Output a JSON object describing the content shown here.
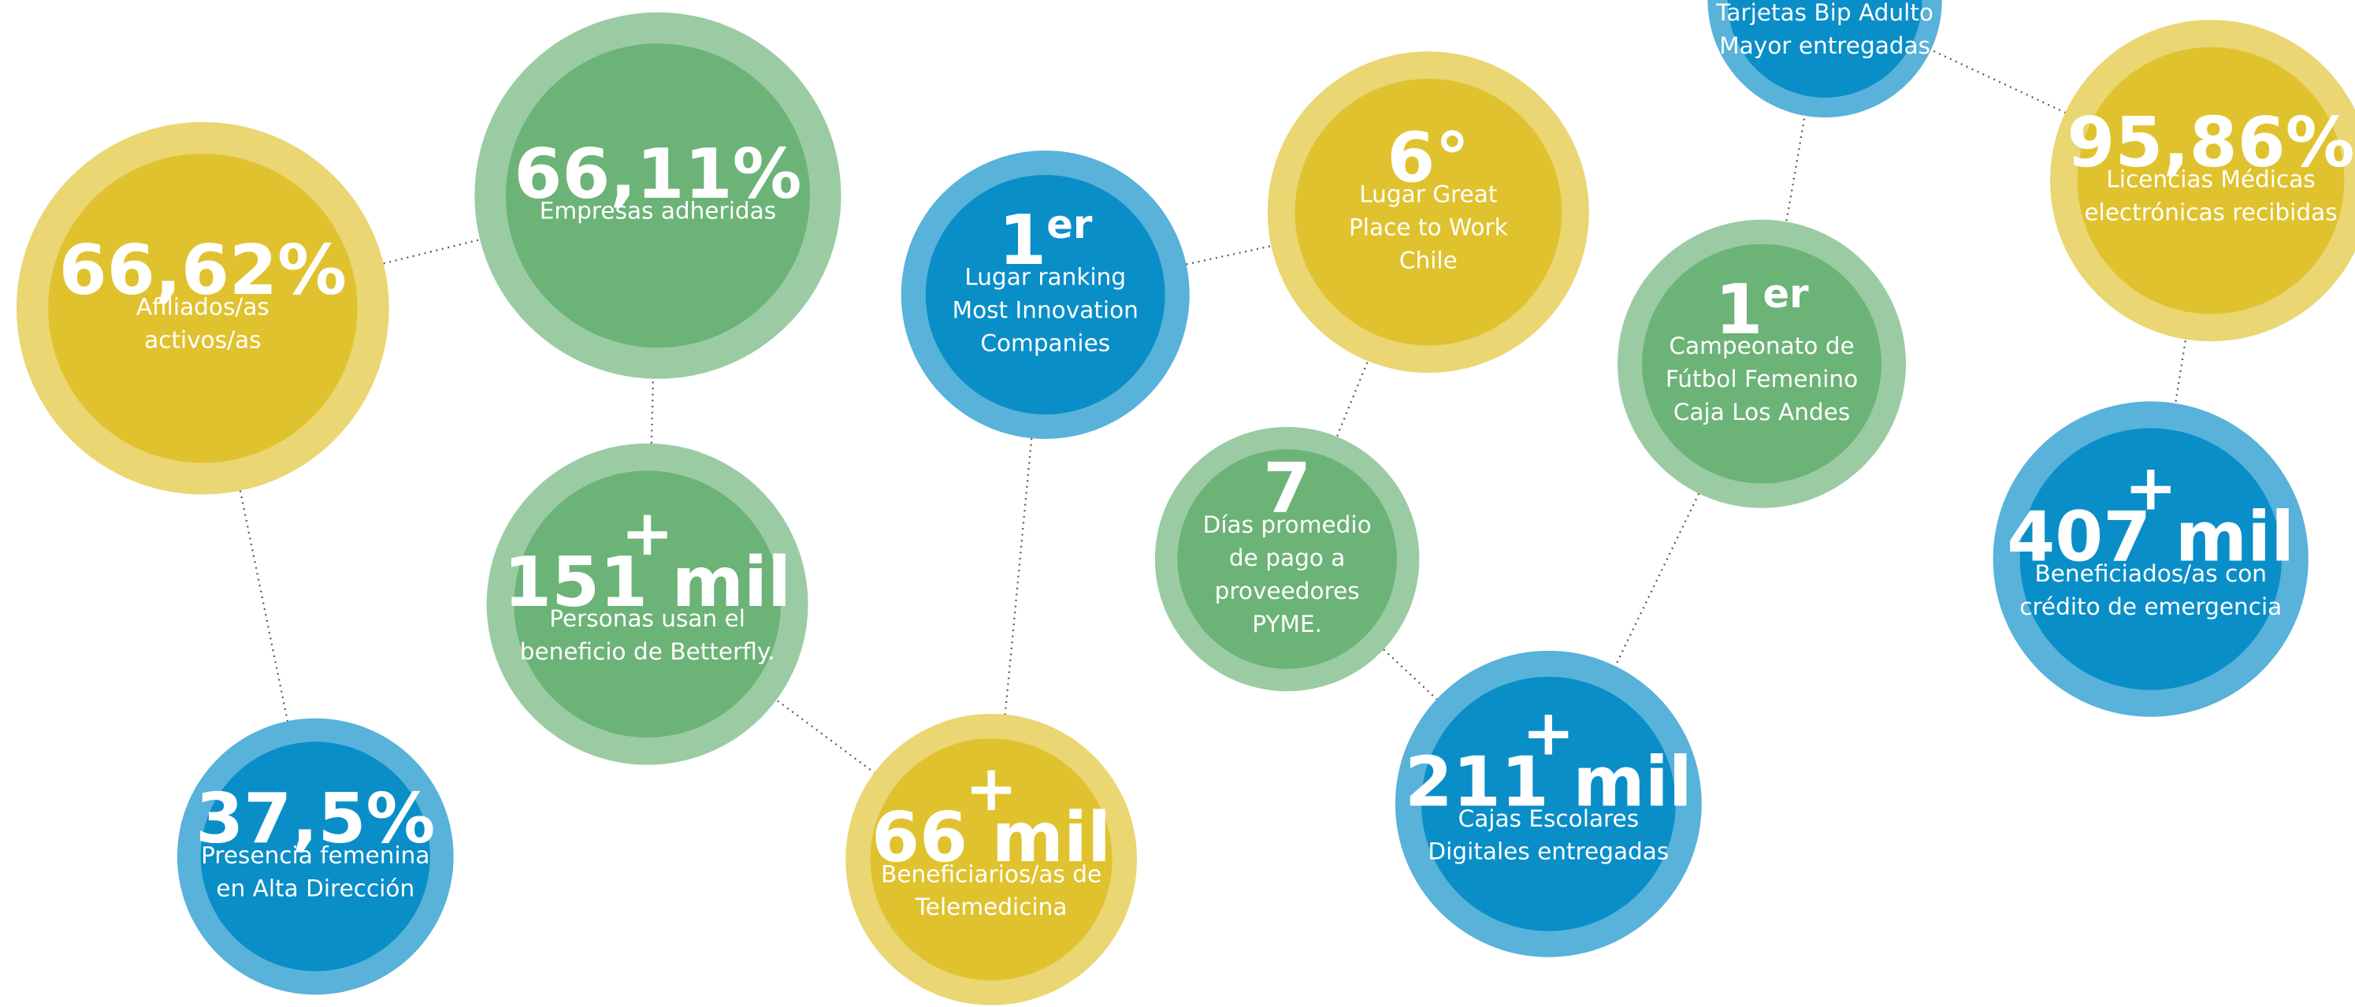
{
  "nodes": [
    {
      "value": "66,62%",
      "label": [
        "Afiliados/as",
        "activos/as"
      ],
      "color": "#e0c22f"
    },
    {
      "value": "66,11%",
      "label": [
        "Empresas adheridas"
      ],
      "color": "#6cb377"
    },
    {
      "value": "1",
      "sup": "er",
      "label": [
        "Lugar ranking",
        "Most Innovation",
        "Companies"
      ],
      "color": "#0a8ec8"
    },
    {
      "value": "6°",
      "label": [
        "Lugar Great",
        "Place to Work",
        "Chile"
      ],
      "color": "#e0c22f"
    },
    {
      "label": [
        "Tarjetas Bip Adulto",
        "Mayor entregadas"
      ],
      "color": "#0a8ec8"
    },
    {
      "value": "95,86%",
      "label": [
        "Licencias Médicas",
        "electrónicas recibidas"
      ],
      "color": "#e0c22f"
    },
    {
      "value": "1",
      "sup": "er",
      "label": [
        "Campeonato de",
        "Fútbol Femenino",
        "Caja Los Andes"
      ],
      "color": "#6cb377"
    },
    {
      "prefix": "+",
      "value": "151 mil",
      "label": [
        "Personas usan el",
        "beneficio de Betterfly."
      ],
      "color": "#6cb377"
    },
    {
      "value": "7",
      "label": [
        "Días promedio",
        "de pago a",
        "proveedores",
        "PYME."
      ],
      "color": "#6cb377"
    },
    {
      "prefix": "+",
      "value": "407 mil",
      "label": [
        "Beneficiados/as con",
        "crédito de emergencia"
      ],
      "color": "#0a8ec8"
    },
    {
      "value": "37,5%",
      "label": [
        "Presencia femenina",
        "en Alta Dirección"
      ],
      "color": "#0a8ec8"
    },
    {
      "prefix": "+",
      "value": "66 mil",
      "label": [
        "Beneficiarios/as de",
        "Telemedicina"
      ],
      "color": "#e0c22f"
    },
    {
      "prefix": "+",
      "value": "211 mil",
      "label": [
        "Cajas Escolares",
        "Digitales entregadas"
      ],
      "color": "#0a8ec8"
    }
  ]
}
